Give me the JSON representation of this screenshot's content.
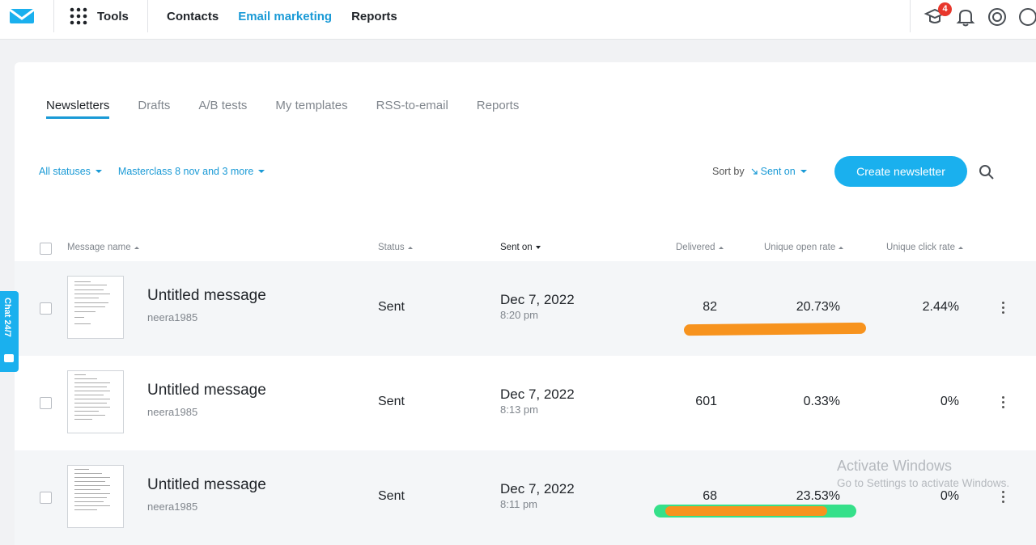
{
  "nav": {
    "tools_label": "Tools",
    "links": [
      "Contacts",
      "Email marketing",
      "Reports"
    ],
    "active_link": "Email marketing",
    "notification_count": "4",
    "icons": [
      "learning-cap-icon",
      "bell-icon",
      "help-lifebuoy-icon",
      "account-icon"
    ]
  },
  "tabs": [
    "Newsletters",
    "Drafts",
    "A/B tests",
    "My templates",
    "RSS-to-email",
    "Reports"
  ],
  "active_tab": "Newsletters",
  "filters": {
    "status": "All statuses",
    "campaign": "Masterclass 8 nov and 3 more",
    "sort_label": "Sort by",
    "sort_value": "Sent on"
  },
  "create_button": "Create newsletter",
  "columns": {
    "name": "Message name",
    "status": "Status",
    "sent_on": "Sent on",
    "delivered": "Delivered",
    "open_rate": "Unique open rate",
    "click_rate": "Unique click rate"
  },
  "rows": [
    {
      "name": "Untitled message",
      "author": "neera1985",
      "status": "Sent",
      "date": "Dec 7, 2022",
      "time": "8:20 pm",
      "delivered": "82",
      "open_rate": "20.73%",
      "click_rate": "2.44%"
    },
    {
      "name": "Untitled message",
      "author": "neera1985",
      "status": "Sent",
      "date": "Dec 7, 2022",
      "time": "8:13 pm",
      "delivered": "601",
      "open_rate": "0.33%",
      "click_rate": "0%"
    },
    {
      "name": "Untitled message",
      "author": "neera1985",
      "status": "Sent",
      "date": "Dec 7, 2022",
      "time": "8:11 pm",
      "delivered": "68",
      "open_rate": "23.53%",
      "click_rate": "0%"
    }
  ],
  "chat_label": "Chat 24/7",
  "watermark": {
    "line1": "Activate Windows",
    "line2": "Go to Settings to activate Windows."
  },
  "colors": {
    "accent": "#1a9ad6",
    "button": "#1ab0ee",
    "highlight_orange": "#f7931e",
    "highlight_green": "#35e08a",
    "badge": "#e8372c"
  }
}
